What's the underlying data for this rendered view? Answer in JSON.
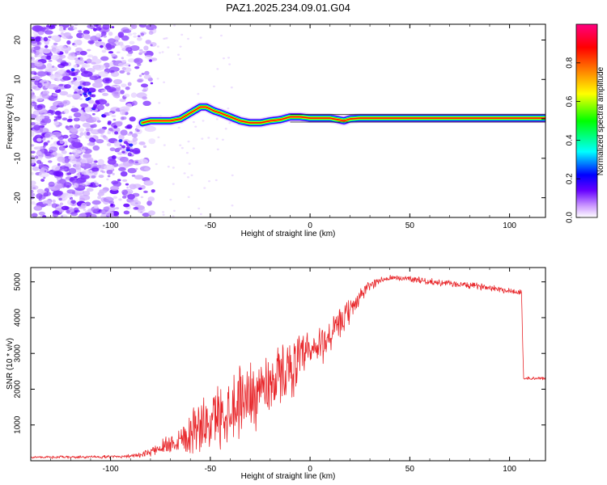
{
  "chart_data": [
    {
      "type": "heatmap",
      "title": "PAZ1.2025.234.09.01.G04",
      "xlabel": "Height of straight line (km)",
      "ylabel": "Frequency (Hz)",
      "xlim": [
        -140,
        118
      ],
      "ylim": [
        -25,
        24
      ],
      "xticks": [
        -100,
        -50,
        0,
        50,
        100
      ],
      "yticks": [
        -20,
        -10,
        0,
        10,
        20
      ],
      "colorbar": {
        "label": "Normalized spectral amplitude",
        "range": [
          0,
          1
        ],
        "ticks": [
          "0.0",
          "0.2",
          "0.4",
          "0.6",
          "0.8"
        ],
        "colors": [
          "#ffffff",
          "#cc99ff",
          "#6600ff",
          "#0000ff",
          "#00ffff",
          "#00ff00",
          "#ffff00",
          "#ff8000",
          "#ff0000",
          "#ff0080"
        ]
      },
      "ridge": {
        "x": [
          -84,
          -80,
          -75,
          -70,
          -65,
          -60,
          -55,
          -52,
          -48,
          -45,
          -40,
          -35,
          -30,
          -25,
          -20,
          -15,
          -10,
          -5,
          0,
          10,
          17,
          20,
          25,
          40,
          60,
          76,
          90,
          118
        ],
        "y": [
          -1.0,
          -0.5,
          -0.5,
          -0.5,
          0.0,
          1.5,
          3.0,
          3.0,
          2.0,
          1.5,
          0.5,
          -0.5,
          -1.0,
          -1.0,
          -0.5,
          -0.2,
          0.5,
          0.5,
          0.2,
          0.2,
          -0.5,
          0.0,
          0.2,
          0.2,
          0.2,
          0.2,
          0.2,
          0.2
        ]
      },
      "scatter_region": {
        "xmin": -140,
        "xmax": -78,
        "ymin": -25,
        "ymax": 24
      },
      "diagonal_streak": {
        "x": [
          -120,
          -90
        ],
        "y": [
          12,
          -8
        ]
      }
    },
    {
      "type": "line",
      "title": "",
      "xlabel": "Height of straight line (km)",
      "ylabel": "SNR (10 * v/v)",
      "xlim": [
        -140,
        118
      ],
      "ylim": [
        0,
        5400
      ],
      "xticks": [
        -100,
        -50,
        0,
        50,
        100
      ],
      "yticks": [
        1000,
        2000,
        3000,
        4000,
        5000
      ],
      "series": [
        {
          "name": "SNR",
          "color": "#e8262a",
          "x": [
            -140,
            -120,
            -100,
            -85,
            -80,
            -75,
            -70,
            -65,
            -60,
            -58,
            -55,
            -50,
            -45,
            -40,
            -35,
            -30,
            -25,
            -20,
            -15,
            -10,
            -5,
            0,
            5,
            10,
            15,
            20,
            25,
            30,
            35,
            40,
            50,
            60,
            70,
            80,
            90,
            100,
            106,
            107,
            110,
            118
          ],
          "mean": [
            100,
            100,
            110,
            150,
            250,
            380,
            500,
            620,
            800,
            1000,
            900,
            1100,
            1300,
            1500,
            1700,
            1850,
            2000,
            2200,
            2400,
            2600,
            2800,
            3000,
            3200,
            3500,
            3800,
            4200,
            4600,
            4900,
            5050,
            5100,
            5100,
            5000,
            4950,
            4900,
            4850,
            4750,
            4700,
            2300,
            2300,
            2300
          ],
          "noise": [
            30,
            40,
            40,
            60,
            120,
            200,
            300,
            450,
            600,
            800,
            700,
            800,
            900,
            1000,
            1000,
            1000,
            950,
            900,
            850,
            800,
            750,
            650,
            600,
            500,
            450,
            350,
            250,
            150,
            100,
            90,
            90,
            90,
            90,
            90,
            90,
            90,
            90,
            50,
            50,
            50
          ]
        }
      ]
    }
  ]
}
